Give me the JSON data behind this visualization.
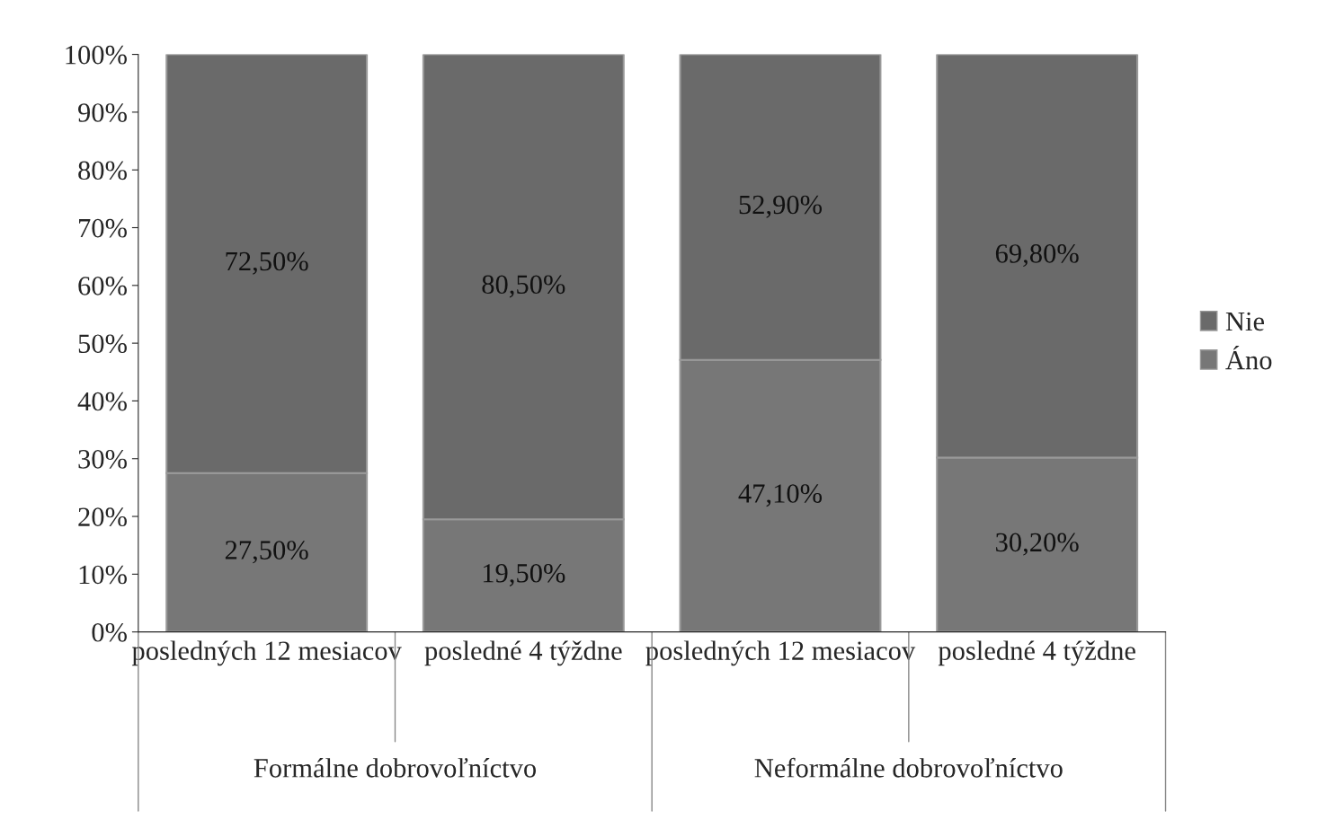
{
  "chart_data": {
    "type": "bar",
    "stacked": true,
    "categories": [
      "posledných 12 mesiacov",
      "posledné 4 týždne",
      "posledných 12 mesiacov",
      "posledné 4 týždne"
    ],
    "series": [
      {
        "name": "Áno",
        "color": "#777777",
        "values": [
          27.5,
          19.5,
          47.1,
          30.2
        ],
        "value_labels": [
          "27,50%",
          "19,50%",
          "47,10%",
          "30,20%"
        ]
      },
      {
        "name": "Nie",
        "color": "#6a6a6a",
        "values": [
          72.5,
          80.5,
          52.9,
          69.8
        ],
        "value_labels": [
          "72,50%",
          "80,50%",
          "52,90%",
          "69,80%"
        ]
      }
    ],
    "annotations": [
      "Formálne dobrovoľníctvo",
      "Neformálne dobrovoľníctvo"
    ],
    "ylim": [
      0,
      100
    ],
    "yticks": [
      {
        "value": 0,
        "label": "0%"
      },
      {
        "value": 10,
        "label": "10%"
      },
      {
        "value": 20,
        "label": "20%"
      },
      {
        "value": 30,
        "label": "30%"
      },
      {
        "value": 40,
        "label": "40%"
      },
      {
        "value": 50,
        "label": "50%"
      },
      {
        "value": 60,
        "label": "60%"
      },
      {
        "value": 70,
        "label": "70%"
      },
      {
        "value": 80,
        "label": "80%"
      },
      {
        "value": 90,
        "label": "90%"
      },
      {
        "value": 100,
        "label": "100%"
      }
    ],
    "grid": false,
    "legend": "right"
  }
}
